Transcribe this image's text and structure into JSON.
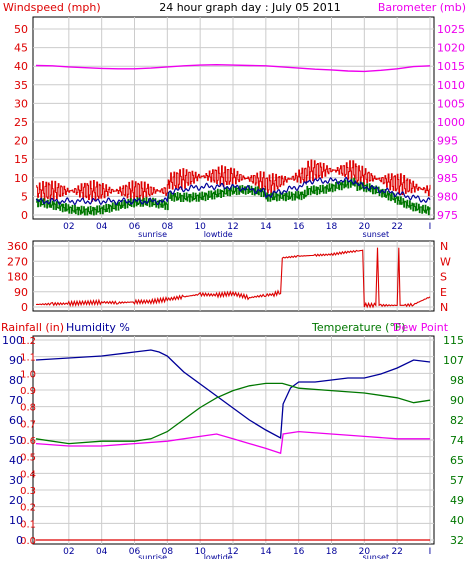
{
  "header": {
    "left_label": "Windspeed (mph)",
    "title": "24 hour graph day : July 05 2011",
    "right_label": "Barometer (mb)"
  },
  "bottom_header": {
    "rain_label": "Rainfall (in)",
    "humidity_label": "Humidity %",
    "temp_label": "Temperature (°F)",
    "dew_label": "Dew Point"
  },
  "colors": {
    "red": "#dd0000",
    "magenta": "#ee00ee",
    "navy": "#000099",
    "green": "#007700",
    "grid": "#cccccc",
    "frame": "#000000"
  },
  "x_axis": {
    "hour_ticks": [
      "02",
      "04",
      "06",
      "08",
      "10",
      "12",
      "14",
      "16",
      "18",
      "20",
      "22",
      "I"
    ],
    "events": [
      {
        "label": "sunrise",
        "hour": 7.1
      },
      {
        "label": "lowtide",
        "hour": 11.1
      },
      {
        "label": "sunset",
        "hour": 20.7
      }
    ]
  },
  "chart_data": [
    {
      "type": "line",
      "panel": "wind_barometer",
      "y_left_ticks": [
        "0",
        "5",
        "10",
        "15",
        "20",
        "25",
        "30",
        "35",
        "40",
        "45",
        "50"
      ],
      "y_left_range": [
        0,
        50
      ],
      "y_right_ticks": [
        "975",
        "980",
        "985",
        "990",
        "995",
        "1000",
        "1005",
        "1010",
        "1015",
        "1020",
        "1025"
      ],
      "y_right_range": [
        975,
        1025
      ],
      "series": [
        {
          "key": "barometer",
          "axis": "right",
          "color": "#ee00ee",
          "points": [
            [
              0,
              1015.2
            ],
            [
              1,
              1015.1
            ],
            [
              2,
              1014.8
            ],
            [
              3,
              1014.6
            ],
            [
              4,
              1014.4
            ],
            [
              5,
              1014.3
            ],
            [
              6,
              1014.3
            ],
            [
              7,
              1014.5
            ],
            [
              8,
              1014.8
            ],
            [
              9,
              1015.1
            ],
            [
              10,
              1015.3
            ],
            [
              11,
              1015.4
            ],
            [
              12,
              1015.3
            ],
            [
              13,
              1015.2
            ],
            [
              14,
              1015.1
            ],
            [
              15,
              1014.8
            ],
            [
              16,
              1014.5
            ],
            [
              17,
              1014.2
            ],
            [
              18,
              1014.0
            ],
            [
              19,
              1013.7
            ],
            [
              20,
              1013.6
            ],
            [
              21,
              1013.9
            ],
            [
              22,
              1014.3
            ],
            [
              23,
              1014.9
            ],
            [
              24,
              1015.1
            ]
          ]
        }
      ]
    },
    {
      "type": "line",
      "panel": "wind_direction",
      "y_left_ticks": [
        "0",
        "90",
        "180",
        "270",
        "360"
      ],
      "y_left_range": [
        0,
        360
      ],
      "y_right_ticks": [
        "N",
        "E",
        "S",
        "W",
        "N"
      ],
      "series": [
        {
          "key": "wind_direction",
          "color": "#dd0000",
          "points": [
            [
              0,
              15
            ],
            [
              1,
              18
            ],
            [
              2,
              20
            ],
            [
              3,
              25
            ],
            [
              4,
              28
            ],
            [
              5,
              25
            ],
            [
              6,
              30
            ],
            [
              7,
              32
            ],
            [
              8,
              45
            ],
            [
              9,
              60
            ],
            [
              10,
              75
            ],
            [
              11,
              70
            ],
            [
              12,
              80
            ],
            [
              13,
              55
            ],
            [
              14,
              70
            ],
            [
              14.5,
              75
            ],
            [
              14.9,
              90
            ],
            [
              15.0,
              290
            ],
            [
              16,
              300
            ],
            [
              17,
              305
            ],
            [
              18,
              310
            ],
            [
              19,
              325
            ],
            [
              19.6,
              330
            ],
            [
              19.9,
              335
            ],
            [
              20.0,
              10
            ],
            [
              20.7,
              10
            ],
            [
              20.8,
              350
            ],
            [
              21.0,
              10
            ],
            [
              22.0,
              10
            ],
            [
              22.1,
              350
            ],
            [
              22.5,
              10
            ],
            [
              23,
              15
            ],
            [
              24,
              60
            ]
          ]
        }
      ]
    },
    {
      "type": "line",
      "panel": "rain_humidity_temperature",
      "y_rain_ticks": [
        "0.0",
        "0.1",
        "0.2",
        "0.3",
        "0.4",
        "0.5",
        "0.6",
        "0.7",
        "0.8",
        "0.9",
        "1.0",
        "1.1",
        "1.2"
      ],
      "y_rain_range": [
        0,
        1.2
      ],
      "y_humidity_ticks": [
        "0",
        "10",
        "20",
        "30",
        "40",
        "50",
        "60",
        "70",
        "80",
        "90",
        "100"
      ],
      "y_humidity_range": [
        0,
        100
      ],
      "y_temp_ticks": [
        "32",
        "40",
        "49",
        "57",
        "65",
        "74",
        "82",
        "90",
        "98",
        "107",
        "115"
      ],
      "y_temp_range": [
        32,
        115
      ],
      "series": [
        {
          "key": "humidity",
          "axis": "humidity",
          "color": "#000099",
          "points": [
            [
              0,
              90
            ],
            [
              2,
              91
            ],
            [
              4,
              92
            ],
            [
              6,
              94
            ],
            [
              7,
              95
            ],
            [
              7.5,
              94
            ],
            [
              8,
              92
            ],
            [
              8.5,
              88
            ],
            [
              9,
              84
            ],
            [
              10,
              78
            ],
            [
              11,
              72
            ],
            [
              12,
              66
            ],
            [
              13,
              60
            ],
            [
              14,
              55
            ],
            [
              14.9,
              51
            ],
            [
              15.05,
              68
            ],
            [
              15.5,
              76
            ],
            [
              16,
              79
            ],
            [
              17,
              79
            ],
            [
              18,
              80
            ],
            [
              19,
              81
            ],
            [
              20,
              81
            ],
            [
              21,
              83
            ],
            [
              22,
              86
            ],
            [
              23,
              90
            ],
            [
              24,
              89
            ]
          ]
        },
        {
          "key": "temperature",
          "axis": "temperature",
          "color": "#007700",
          "points": [
            [
              0,
              74
            ],
            [
              2,
              72
            ],
            [
              4,
              73
            ],
            [
              6,
              73
            ],
            [
              7,
              74
            ],
            [
              8,
              77
            ],
            [
              9,
              82
            ],
            [
              10,
              87
            ],
            [
              11,
              91
            ],
            [
              12,
              94
            ],
            [
              13,
              96
            ],
            [
              14,
              97
            ],
            [
              15,
              97
            ],
            [
              15.5,
              96
            ],
            [
              16,
              95
            ],
            [
              18,
              94
            ],
            [
              20,
              93
            ],
            [
              22,
              91
            ],
            [
              23,
              89
            ],
            [
              24,
              90
            ]
          ]
        },
        {
          "key": "dew_point",
          "axis": "temperature",
          "color": "#ee00ee",
          "points": [
            [
              0,
              72
            ],
            [
              2,
              71
            ],
            [
              4,
              71
            ],
            [
              6,
              72
            ],
            [
              8,
              73
            ],
            [
              10,
              75
            ],
            [
              11,
              76
            ],
            [
              12,
              74
            ],
            [
              13,
              72
            ],
            [
              14,
              70
            ],
            [
              14.9,
              68
            ],
            [
              15.05,
              76
            ],
            [
              16,
              77
            ],
            [
              18,
              76
            ],
            [
              20,
              75
            ],
            [
              22,
              74
            ],
            [
              24,
              74
            ]
          ]
        },
        {
          "key": "rainfall",
          "axis": "rain",
          "color": "#dd0000",
          "points": [
            [
              0,
              0
            ],
            [
              24,
              0
            ]
          ]
        }
      ]
    }
  ]
}
